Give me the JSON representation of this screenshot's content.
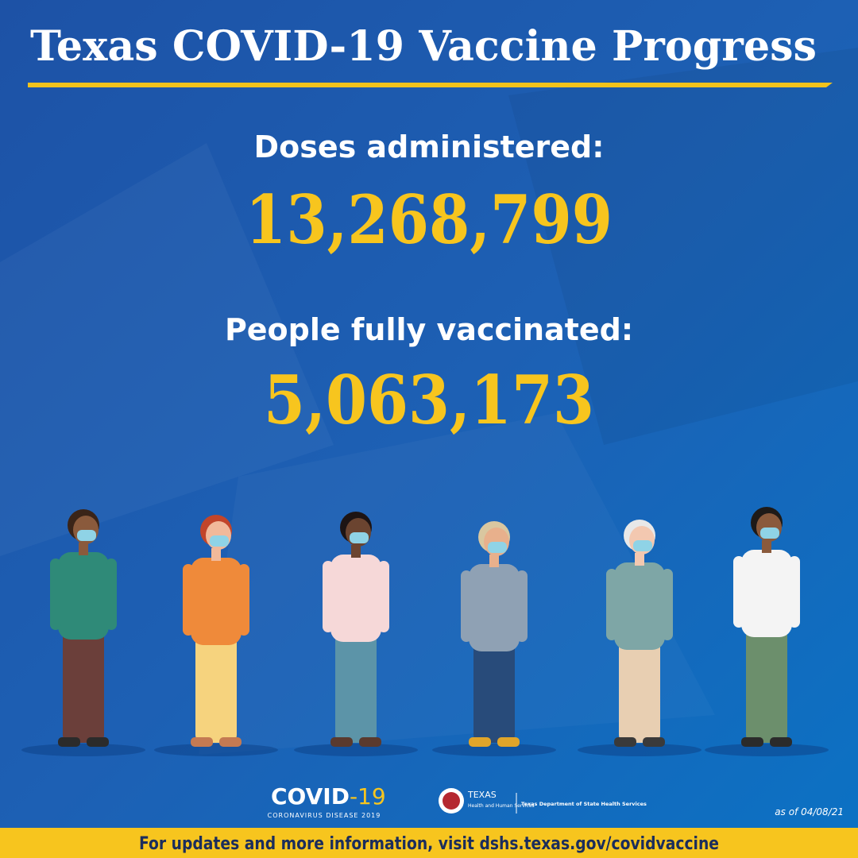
{
  "header": {
    "title": "Texas COVID-19 Vaccine Progress"
  },
  "stats": [
    {
      "label": "Doses administered:",
      "value": "13,268,799"
    },
    {
      "label": "People fully vaccinated:",
      "value": "5,063,173"
    }
  ],
  "logos": {
    "covid": "COVID",
    "covid_suffix": "-19",
    "covid_sub": "CORONAVIRUS DISEASE 2019",
    "texas": "TEXAS",
    "hhs": "Health and Human Services",
    "dshs": "Texas Department of State Health Services"
  },
  "as_of": "as of 04/08/21",
  "footer": "For updates and more information, visit dshs.texas.gov/covidvaccine"
}
